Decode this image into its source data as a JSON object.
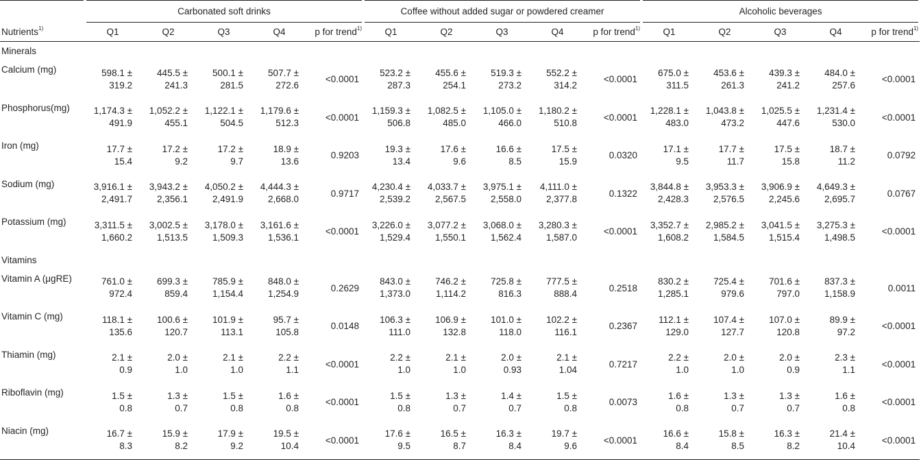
{
  "groups": [
    "Carbonated soft drinks",
    "Coffee without added sugar or powdered creamer",
    "Alcoholic beverages"
  ],
  "header": {
    "nutrients_label": "Nutrients",
    "nutrients_sup": "1)",
    "quartiles": [
      "Q1",
      "Q2",
      "Q3",
      "Q4"
    ],
    "p_trend": "p for trend",
    "p_sup": "1)"
  },
  "sections": [
    {
      "title": "Minerals",
      "rows": [
        {
          "label": "Calcium (mg)",
          "groups": [
            {
              "cells": [
                [
                  "598.1 ±",
                  "319.2"
                ],
                [
                  "445.5 ±",
                  "241.3"
                ],
                [
                  "500.1 ±",
                  "281.5"
                ],
                [
                  "507.7 ±",
                  "272.6"
                ]
              ],
              "p": "<0.0001"
            },
            {
              "cells": [
                [
                  "523.2 ±",
                  "287.3"
                ],
                [
                  "455.6 ±",
                  "254.1"
                ],
                [
                  "519.3 ±",
                  "273.2"
                ],
                [
                  "552.2 ±",
                  "314.2"
                ]
              ],
              "p": "<0.0001"
            },
            {
              "cells": [
                [
                  "675.0 ±",
                  "311.5"
                ],
                [
                  "453.6 ±",
                  "261.3"
                ],
                [
                  "439.3 ±",
                  "241.2"
                ],
                [
                  "484.0 ±",
                  "257.6"
                ]
              ],
              "p": "<0.0001"
            }
          ]
        },
        {
          "label": "Phosphorus(mg)",
          "groups": [
            {
              "cells": [
                [
                  "1,174.3 ±",
                  "491.9"
                ],
                [
                  "1,052.2 ±",
                  "455.1"
                ],
                [
                  "1,122.1 ±",
                  "504.5"
                ],
                [
                  "1,179.6 ±",
                  "512.3"
                ]
              ],
              "p": "<0.0001"
            },
            {
              "cells": [
                [
                  "1,159.3 ±",
                  "506.8"
                ],
                [
                  "1,082.5 ±",
                  "485.0"
                ],
                [
                  "1,105.0 ±",
                  "466.0"
                ],
                [
                  "1,180.2 ±",
                  "510.8"
                ]
              ],
              "p": "<0.0001"
            },
            {
              "cells": [
                [
                  "1,228.1 ±",
                  "483.0"
                ],
                [
                  "1,043.8 ±",
                  "473.2"
                ],
                [
                  "1,025.5 ±",
                  "447.6"
                ],
                [
                  "1,231.4 ±",
                  "530.0"
                ]
              ],
              "p": "<0.0001"
            }
          ]
        },
        {
          "label": "Iron (mg)",
          "groups": [
            {
              "cells": [
                [
                  "17.7 ±",
                  "15.4"
                ],
                [
                  "17.2 ±",
                  "9.2"
                ],
                [
                  "17.2 ±",
                  "9.7"
                ],
                [
                  "18.9 ±",
                  "13.6"
                ]
              ],
              "p": "0.9203"
            },
            {
              "cells": [
                [
                  "19.3 ±",
                  "13.4"
                ],
                [
                  "17.6 ±",
                  "9.6"
                ],
                [
                  "16.6 ±",
                  "8.5"
                ],
                [
                  "17.5 ±",
                  "15.9"
                ]
              ],
              "p": "0.0320"
            },
            {
              "cells": [
                [
                  "17.1 ±",
                  "9.5"
                ],
                [
                  "17.7 ±",
                  "11.7"
                ],
                [
                  "17.5 ±",
                  "15.8"
                ],
                [
                  "18.7 ±",
                  "11.2"
                ]
              ],
              "p": "0.0792"
            }
          ]
        },
        {
          "label": "Sodium (mg)",
          "groups": [
            {
              "cells": [
                [
                  "3,916.1 ±",
                  "2,491.7"
                ],
                [
                  "3,943.2 ±",
                  "2,356.1"
                ],
                [
                  "4,050.2 ±",
                  "2,491.9"
                ],
                [
                  "4,444.3 ±",
                  "2,668.0"
                ]
              ],
              "p": "0.9717"
            },
            {
              "cells": [
                [
                  "4,230.4 ±",
                  "2,539.2"
                ],
                [
                  "4,033.7 ±",
                  "2,567.5"
                ],
                [
                  "3,975.1 ±",
                  "2,558.0"
                ],
                [
                  "4,111.0 ±",
                  "2,377.8"
                ]
              ],
              "p": "0.1322"
            },
            {
              "cells": [
                [
                  "3,844.8 ±",
                  "2,428.3"
                ],
                [
                  "3,953.3 ±",
                  "2,576.5"
                ],
                [
                  "3,906.9 ±",
                  "2,245.6"
                ],
                [
                  "4,649.3 ±",
                  "2,695.7"
                ]
              ],
              "p": "0.0767"
            }
          ]
        },
        {
          "label": "Potassium (mg)",
          "groups": [
            {
              "cells": [
                [
                  "3,311.5 ±",
                  "1,660.2"
                ],
                [
                  "3,002.5 ±",
                  "1,513.5"
                ],
                [
                  "3,178.0 ±",
                  "1,509.3"
                ],
                [
                  "3,161.6 ±",
                  "1,536.1"
                ]
              ],
              "p": "<0.0001"
            },
            {
              "cells": [
                [
                  "3,226.0 ±",
                  "1,529.4"
                ],
                [
                  "3,077.2 ±",
                  "1,550.1"
                ],
                [
                  "3,068.0 ±",
                  "1,562.4"
                ],
                [
                  "3,280.3 ±",
                  "1,587.0"
                ]
              ],
              "p": "<0.0001"
            },
            {
              "cells": [
                [
                  "3,352.7 ±",
                  "1,608.2"
                ],
                [
                  "2,985.2 ±",
                  "1,584.5"
                ],
                [
                  "3,041.5 ±",
                  "1,515.4"
                ],
                [
                  "3,275.3 ±",
                  "1,498.5"
                ]
              ],
              "p": "<0.0001"
            }
          ]
        }
      ]
    },
    {
      "title": "Vitamins",
      "rows": [
        {
          "label": "Vitamin A (μgRE)",
          "groups": [
            {
              "cells": [
                [
                  "761.0 ±",
                  "972.4"
                ],
                [
                  "699.3 ±",
                  "859.4"
                ],
                [
                  "785.9 ±",
                  "1,154.4"
                ],
                [
                  "848.0 ±",
                  "1,254.9"
                ]
              ],
              "p": "0.2629"
            },
            {
              "cells": [
                [
                  "843.0 ±",
                  "1,373.0"
                ],
                [
                  "746.2 ±",
                  "1,114.2"
                ],
                [
                  "725.8 ±",
                  "816.3"
                ],
                [
                  "777.5 ±",
                  "888.4"
                ]
              ],
              "p": "0.2518"
            },
            {
              "cells": [
                [
                  "830.2 ±",
                  "1,285.1"
                ],
                [
                  "725.4 ±",
                  "979.6"
                ],
                [
                  "701.6 ±",
                  "797.0"
                ],
                [
                  "837.3 ±",
                  "1,158.9"
                ]
              ],
              "p": "0.0011"
            }
          ]
        },
        {
          "label": "Vitamin C (mg)",
          "groups": [
            {
              "cells": [
                [
                  "118.1 ±",
                  "135.6"
                ],
                [
                  "100.6 ±",
                  "120.7"
                ],
                [
                  "101.9 ±",
                  "113.1"
                ],
                [
                  "95.7 ±",
                  "105.8"
                ]
              ],
              "p": "0.0148"
            },
            {
              "cells": [
                [
                  "106.3 ±",
                  "111.0"
                ],
                [
                  "106.9 ±",
                  "132.8"
                ],
                [
                  "101.0 ±",
                  "118.0"
                ],
                [
                  "102.2 ±",
                  "116.1"
                ]
              ],
              "p": "0.2367"
            },
            {
              "cells": [
                [
                  "112.1 ±",
                  "129.0"
                ],
                [
                  "107.4 ±",
                  "127.7"
                ],
                [
                  "107.0 ±",
                  "120.8"
                ],
                [
                  "89.9 ±",
                  "97.2"
                ]
              ],
              "p": "<0.0001"
            }
          ]
        },
        {
          "label": "Thiamin (mg)",
          "groups": [
            {
              "cells": [
                [
                  "2.1 ±",
                  "0.9"
                ],
                [
                  "2.0 ±",
                  "1.0"
                ],
                [
                  "2.1 ±",
                  "1.0"
                ],
                [
                  "2.2 ±",
                  "1.1"
                ]
              ],
              "p": "<0.0001"
            },
            {
              "cells": [
                [
                  "2.2 ±",
                  "1.0"
                ],
                [
                  "2.1 ±",
                  "1.0"
                ],
                [
                  "2.0 ±",
                  "0.93"
                ],
                [
                  "2.1 ±",
                  "1.04"
                ]
              ],
              "p": "0.7217"
            },
            {
              "cells": [
                [
                  "2.2 ±",
                  "1.0"
                ],
                [
                  "2.0 ±",
                  "1.0"
                ],
                [
                  "2.0 ±",
                  "0.9"
                ],
                [
                  "2.3 ±",
                  "1.1"
                ]
              ],
              "p": "<0.0001"
            }
          ]
        },
        {
          "label": "Riboflavin (mg)",
          "groups": [
            {
              "cells": [
                [
                  "1.5 ±",
                  "0.8"
                ],
                [
                  "1.3 ±",
                  "0.7"
                ],
                [
                  "1.5 ±",
                  "0.8"
                ],
                [
                  "1.6 ±",
                  "0.8"
                ]
              ],
              "p": "<0.0001"
            },
            {
              "cells": [
                [
                  "1.5 ±",
                  "0.8"
                ],
                [
                  "1.3 ±",
                  "0.7"
                ],
                [
                  "1.4 ±",
                  "0.7"
                ],
                [
                  "1.5 ±",
                  "0.8"
                ]
              ],
              "p": "0.0073"
            },
            {
              "cells": [
                [
                  "1.6 ±",
                  "0.8"
                ],
                [
                  "1.3 ±",
                  "0.7"
                ],
                [
                  "1.3 ±",
                  "0.7"
                ],
                [
                  "1.6 ±",
                  "0.8"
                ]
              ],
              "p": "<0.0001"
            }
          ]
        },
        {
          "label": "Niacin (mg)",
          "groups": [
            {
              "cells": [
                [
                  "16.7 ±",
                  "8.3"
                ],
                [
                  "15.9 ±",
                  "8.2"
                ],
                [
                  "17.9 ±",
                  "9.2"
                ],
                [
                  "19.5 ±",
                  "10.4"
                ]
              ],
              "p": "<0.0001"
            },
            {
              "cells": [
                [
                  "17.6 ±",
                  "9.5"
                ],
                [
                  "16.5 ±",
                  "8.7"
                ],
                [
                  "16.3 ±",
                  "8.4"
                ],
                [
                  "19.7 ±",
                  "9.6"
                ]
              ],
              "p": "<0.0001"
            },
            {
              "cells": [
                [
                  "16.6 ±",
                  "8.4"
                ],
                [
                  "15.8 ±",
                  "8.5"
                ],
                [
                  "16.3 ±",
                  "8.2"
                ],
                [
                  "21.4 ±",
                  "10.4"
                ]
              ],
              "p": "<0.0001"
            }
          ]
        }
      ]
    }
  ]
}
